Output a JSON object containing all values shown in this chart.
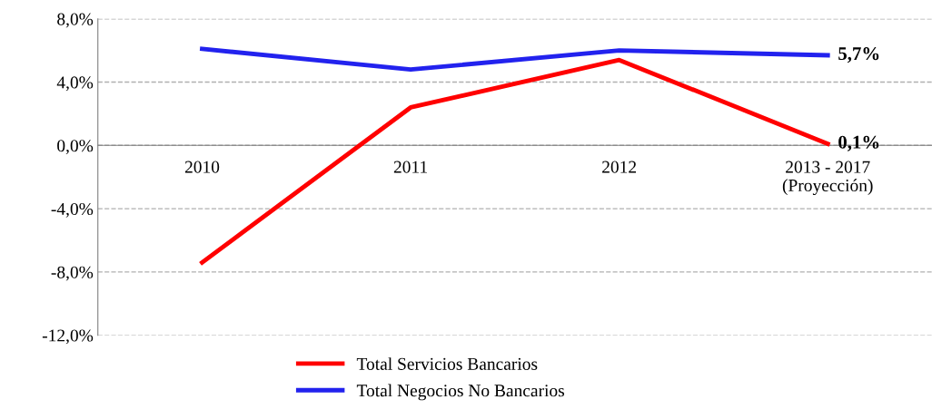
{
  "chart_data": {
    "type": "line",
    "categories": [
      "2010",
      "2011",
      "2012",
      "2013 - 2017\n(Proyección)"
    ],
    "series": [
      {
        "name": "Total Servicios Bancarios",
        "color": "#ff0000",
        "values": [
          -7.4,
          2.4,
          5.4,
          0.1
        ],
        "value_labels": [
          null,
          null,
          null,
          "0,1%"
        ]
      },
      {
        "name": "Total Negocios No Bancarios",
        "color": "#2222ee",
        "values": [
          6.1,
          4.8,
          6.0,
          5.7
        ],
        "value_labels": [
          null,
          null,
          null,
          "5,7%"
        ]
      }
    ],
    "ylim": [
      -12,
      8
    ],
    "yticks": [
      {
        "value": -12,
        "label": "-12,0%"
      },
      {
        "value": -8,
        "label": "-8,0%"
      },
      {
        "value": -4,
        "label": "-4,0%"
      },
      {
        "value": 0,
        "label": "0,0%"
      },
      {
        "value": 4,
        "label": "4,0%"
      },
      {
        "value": 8,
        "label": "8,0%"
      }
    ],
    "grid": "y",
    "legend": "bottom",
    "marker": "none",
    "line_style": "solid"
  }
}
